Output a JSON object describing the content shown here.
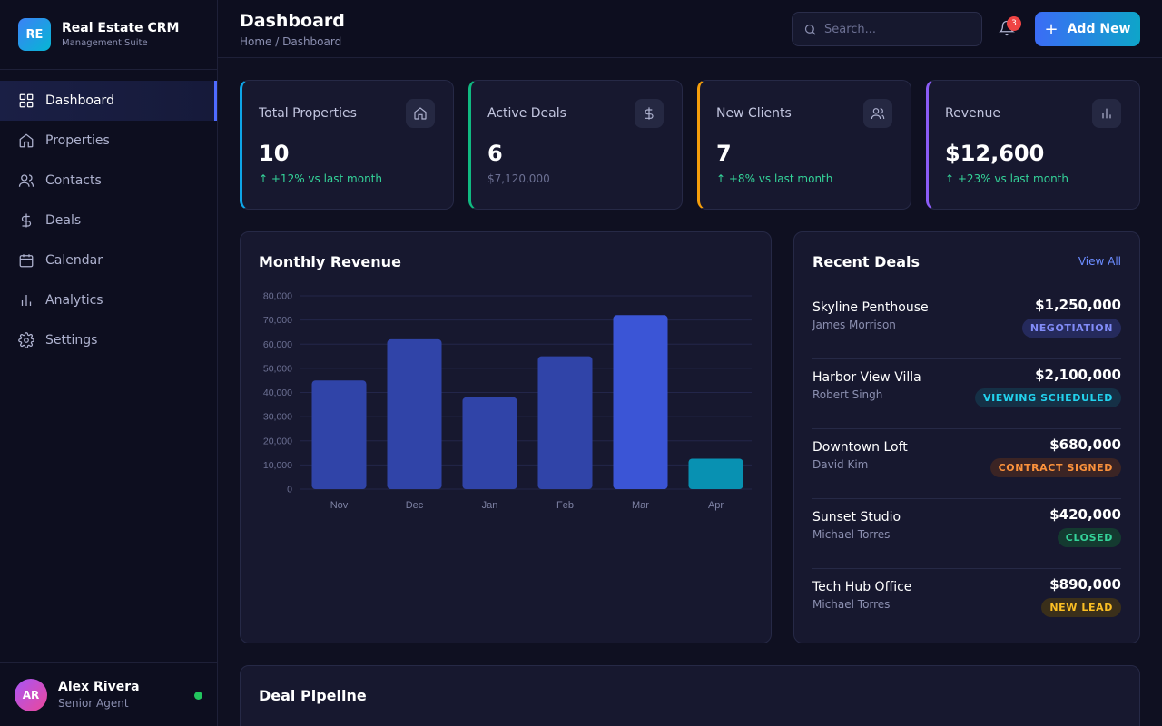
{
  "brand": {
    "logo": "RE",
    "title": "Real Estate CRM",
    "subtitle": "Management Suite"
  },
  "nav": {
    "items": [
      {
        "label": "Dashboard",
        "icon": "grid-icon",
        "active": true
      },
      {
        "label": "Properties",
        "icon": "home-icon"
      },
      {
        "label": "Contacts",
        "icon": "users-icon"
      },
      {
        "label": "Deals",
        "icon": "dollar-icon"
      },
      {
        "label": "Calendar",
        "icon": "calendar-icon"
      },
      {
        "label": "Analytics",
        "icon": "bar-chart-icon"
      },
      {
        "label": "Settings",
        "icon": "gear-icon"
      }
    ]
  },
  "user": {
    "initials": "AR",
    "name": "Alex Rivera",
    "role": "Senior Agent",
    "status": "online"
  },
  "header": {
    "title": "Dashboard",
    "breadcrumb": "Home / Dashboard",
    "search_placeholder": "Search...",
    "notification_count": "3",
    "add_button": "Add New"
  },
  "stats": [
    {
      "label": "Total Properties",
      "value": "10",
      "sub": "+12% vs last month",
      "trend": "up",
      "icon": "home-icon",
      "accent": "#0ea5e9"
    },
    {
      "label": "Active Deals",
      "value": "6",
      "sub": "$7,120,000",
      "trend": "none",
      "icon": "dollar-icon",
      "accent": "#10b981"
    },
    {
      "label": "New Clients",
      "value": "7",
      "sub": "+8% vs last month",
      "trend": "up",
      "icon": "users-icon",
      "accent": "#f59e0b"
    },
    {
      "label": "Revenue",
      "value": "$12,600",
      "sub": "+23% vs last month",
      "trend": "up",
      "icon": "bar-chart-icon",
      "accent": "#8b5cf6"
    }
  ],
  "revenue_panel": {
    "title": "Monthly Revenue"
  },
  "chart_data": {
    "type": "bar",
    "title": "Monthly Revenue",
    "categories": [
      "Nov",
      "Dec",
      "Jan",
      "Feb",
      "Mar",
      "Apr"
    ],
    "values": [
      45000,
      62000,
      38000,
      55000,
      72000,
      12600
    ],
    "ylim": [
      0,
      80000
    ],
    "yticks": [
      "0",
      "10,000",
      "20,000",
      "30,000",
      "40,000",
      "50,000",
      "60,000",
      "70,000",
      "80,000"
    ],
    "grid": true,
    "colors": {
      "bar": "#3044a8",
      "highlight": "#3b55d6",
      "current": "#0891b2"
    }
  },
  "deals_panel": {
    "title": "Recent Deals",
    "view_all": "View All",
    "items": [
      {
        "name": "Skyline Penthouse",
        "client": "James Morrison",
        "amount": "$1,250,000",
        "status": "NEGOTIATION",
        "color": "#818cf8",
        "bg": "#252a5c"
      },
      {
        "name": "Harbor View Villa",
        "client": "Robert Singh",
        "amount": "$2,100,000",
        "status": "VIEWING SCHEDULED",
        "color": "#22d3ee",
        "bg": "#153046"
      },
      {
        "name": "Downtown Loft",
        "client": "David Kim",
        "amount": "$680,000",
        "status": "CONTRACT SIGNED",
        "color": "#fb923c",
        "bg": "#3b2424"
      },
      {
        "name": "Sunset Studio",
        "client": "Michael Torres",
        "amount": "$420,000",
        "status": "CLOSED",
        "color": "#34d399",
        "bg": "#143a30"
      },
      {
        "name": "Tech Hub Office",
        "client": "Michael Torres",
        "amount": "$890,000",
        "status": "NEW LEAD",
        "color": "#fbbf24",
        "bg": "#3a2f1a"
      }
    ]
  },
  "pipeline_panel": {
    "title": "Deal Pipeline"
  }
}
